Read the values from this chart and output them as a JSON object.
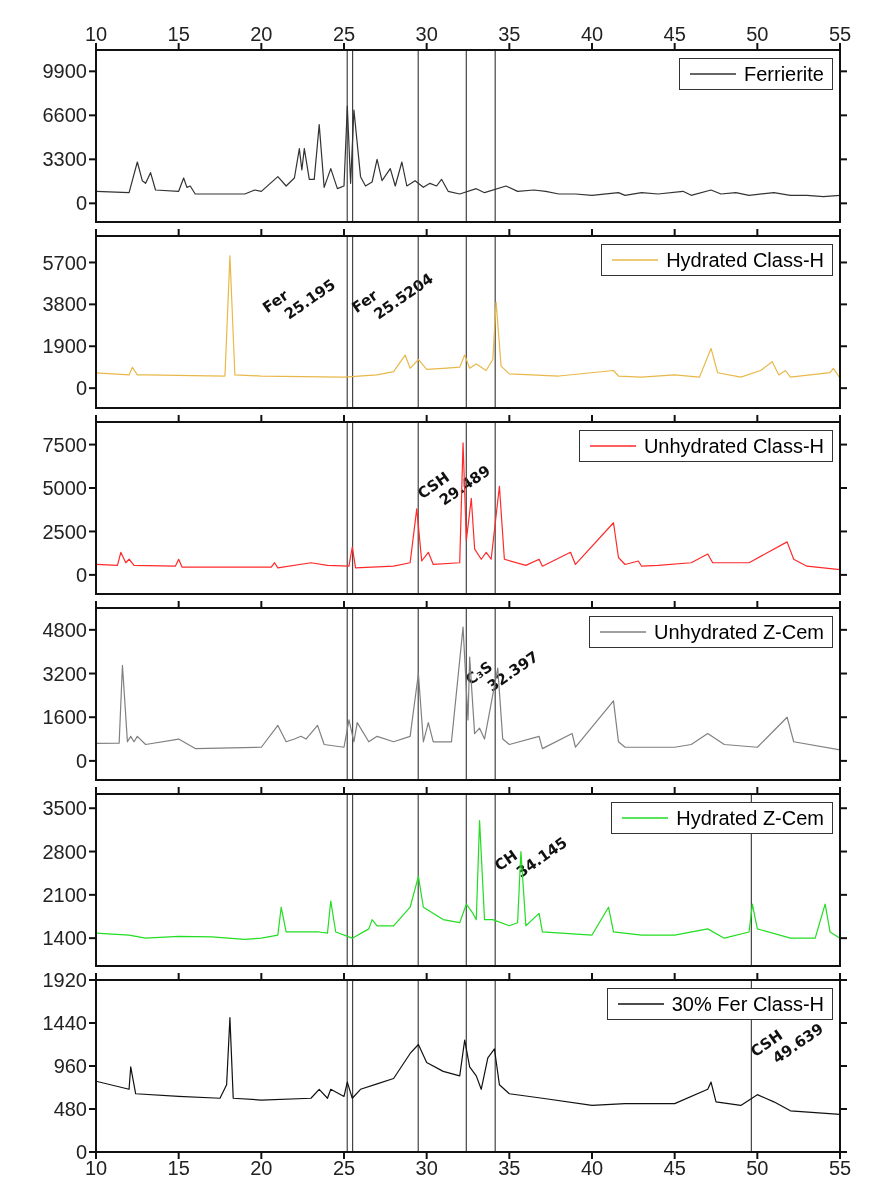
{
  "chart_data": [
    {
      "type": "line",
      "tick_labels": "y",
      "xlim": [
        10,
        55
      ],
      "xticks": [
        10,
        15,
        20,
        25,
        30,
        35,
        40,
        45,
        50,
        55
      ],
      "x2lim": [
        10,
        55
      ],
      "x2ticks": [
        10,
        15,
        20,
        25,
        30,
        35,
        40,
        45,
        50,
        55
      ],
      "ylim": [
        -1400,
        11500
      ],
      "yticks": [
        0,
        3300,
        6600,
        9900
      ],
      "legend": "top right",
      "x": [
        10,
        12,
        12.5,
        12.8,
        13,
        13.3,
        13.6,
        15,
        15.3,
        15.5,
        15.7,
        16,
        17,
        19,
        19.6,
        20,
        21,
        21.5,
        22,
        22.3,
        22.45,
        22.6,
        22.9,
        23.2,
        23.5,
        23.8,
        24.2,
        24.6,
        25,
        25.2,
        25.4,
        25.6,
        26,
        26.3,
        26.7,
        27,
        27.3,
        27.8,
        28.1,
        28.5,
        28.8,
        29.3,
        29.8,
        30.2,
        30.6,
        30.9,
        31.3,
        32,
        33,
        33.5,
        34.8,
        35.5,
        36.5,
        37.2,
        38,
        39,
        40,
        41.6,
        42,
        43,
        44,
        45.5,
        46,
        47.2,
        47.8,
        48.7,
        49.5,
        51,
        52,
        53,
        54,
        55
      ],
      "series": [
        {
          "name": "Ferrierite",
          "color": "#333333",
          "values": [
            900,
            800,
            3100,
            1700,
            1500,
            2300,
            1000,
            900,
            1900,
            1200,
            1300,
            700,
            700,
            700,
            1000,
            900,
            2000,
            1300,
            1900,
            4100,
            2500,
            4100,
            1800,
            1800,
            5900,
            1200,
            2600,
            1100,
            1300,
            7300,
            1500,
            7000,
            2000,
            1300,
            1600,
            3300,
            1700,
            2600,
            1300,
            3100,
            1300,
            1700,
            1200,
            1500,
            1300,
            1800,
            900,
            700,
            1100,
            800,
            1300,
            900,
            1000,
            900,
            700,
            700,
            600,
            800,
            600,
            800,
            700,
            900,
            600,
            1000,
            700,
            800,
            600,
            800,
            600,
            600,
            500,
            600
          ]
        }
      ],
      "ref_lines": [
        {
          "axis": "x",
          "value": 25.195
        },
        {
          "axis": "x",
          "value": 25.5204
        },
        {
          "axis": "x",
          "value": 29.489
        },
        {
          "axis": "x",
          "value": 32.397
        },
        {
          "axis": "x",
          "value": 34.145
        }
      ]
    },
    {
      "type": "line",
      "tick_labels": "y",
      "xlim": [
        10,
        55
      ],
      "xticks": [
        10,
        15,
        20,
        25,
        30,
        35,
        40,
        45,
        50,
        55
      ],
      "ylim": [
        -900,
        6900
      ],
      "yticks": [
        0,
        1900,
        3800,
        5700
      ],
      "legend": "top right",
      "x": [
        10,
        12,
        12.2,
        12.5,
        13,
        17.8,
        18.1,
        18.4,
        20,
        25,
        27,
        28,
        28.7,
        29,
        29.5,
        30,
        31,
        32,
        32.3,
        32.6,
        33,
        33.6,
        34,
        34.2,
        34.5,
        35,
        38,
        41.3,
        41.6,
        43,
        45,
        46.5,
        47.2,
        47.6,
        49,
        50.2,
        50.9,
        51.3,
        51.7,
        52,
        54.4,
        54.6,
        55
      ],
      "series": [
        {
          "name": "Hydrated Class-H",
          "color": "#e8b84a",
          "values": [
            690,
            600,
            950,
            600,
            600,
            550,
            6000,
            600,
            550,
            500,
            600,
            750,
            1500,
            900,
            1300,
            850,
            900,
            950,
            1500,
            900,
            1100,
            800,
            1300,
            3900,
            1000,
            650,
            550,
            800,
            550,
            500,
            600,
            500,
            1800,
            700,
            500,
            800,
            1200,
            600,
            800,
            500,
            700,
            900,
            450
          ]
        }
      ],
      "ref_lines": [
        {
          "axis": "x",
          "value": 25.195,
          "label": "Fer 25.195"
        },
        {
          "axis": "x",
          "value": 25.5204,
          "label": "Fer 25.5204"
        },
        {
          "axis": "x",
          "value": 29.489
        },
        {
          "axis": "x",
          "value": 32.397
        },
        {
          "axis": "x",
          "value": 34.145
        }
      ]
    },
    {
      "type": "line",
      "tick_labels": "y",
      "xlim": [
        10,
        55
      ],
      "xticks": [
        10,
        15,
        20,
        25,
        30,
        35,
        40,
        45,
        50,
        55
      ],
      "ylim": [
        -1100,
        8800
      ],
      "yticks": [
        0,
        2500,
        5000,
        7500
      ],
      "legend": "top right",
      "x": [
        10,
        11.3,
        11.5,
        11.8,
        12,
        12.3,
        14.8,
        15,
        15.2,
        17.5,
        20.6,
        20.8,
        21,
        23,
        24,
        25.3,
        25.5,
        25.7,
        28,
        29,
        29.4,
        29.7,
        30.1,
        30.4,
        32,
        32.2,
        32.4,
        32.7,
        32.9,
        33.3,
        33.6,
        33.9,
        34.4,
        34.7,
        36,
        36.8,
        37,
        38.7,
        39,
        41.3,
        41.6,
        42,
        42.8,
        43,
        44,
        46,
        47,
        47.3,
        49.5,
        51.8,
        52.2,
        53,
        55
      ],
      "series": [
        {
          "name": "Unhydrated Class-H",
          "color": "#ff2a2a",
          "values": [
            600,
            550,
            1300,
            700,
            900,
            550,
            500,
            900,
            450,
            450,
            450,
            700,
            400,
            700,
            550,
            500,
            1600,
            400,
            500,
            700,
            3800,
            800,
            1300,
            600,
            700,
            7600,
            2000,
            4400,
            1500,
            900,
            1300,
            900,
            5100,
            900,
            550,
            900,
            500,
            1300,
            600,
            3000,
            1000,
            600,
            800,
            500,
            550,
            700,
            1200,
            700,
            700,
            1900,
            900,
            500,
            300
          ]
        }
      ],
      "ref_lines": [
        {
          "axis": "x",
          "value": 25.195
        },
        {
          "axis": "x",
          "value": 25.5204
        },
        {
          "axis": "x",
          "value": 29.489,
          "label": "CSH 29.489"
        },
        {
          "axis": "x",
          "value": 32.397
        },
        {
          "axis": "x",
          "value": 34.145
        }
      ]
    },
    {
      "type": "line",
      "tick_labels": "y",
      "xlim": [
        10,
        55
      ],
      "xticks": [
        10,
        15,
        20,
        25,
        30,
        35,
        40,
        45,
        50,
        55
      ],
      "ylim": [
        -700,
        5600
      ],
      "yticks": [
        0,
        1600,
        3200,
        4800
      ],
      "legend": "top right",
      "x": [
        10,
        11.4,
        11.6,
        11.9,
        12.1,
        12.3,
        12.5,
        13,
        15,
        16,
        20,
        21,
        21.5,
        22,
        22.4,
        22.7,
        23.4,
        23.8,
        25,
        25.3,
        25.6,
        25.8,
        26.5,
        27,
        28,
        29,
        29.5,
        29.8,
        30.1,
        30.4,
        31.5,
        32.2,
        32.5,
        32.6,
        32.9,
        33.2,
        33.5,
        34.3,
        34.6,
        35,
        36.8,
        37,
        38.8,
        39,
        41.3,
        41.6,
        42,
        45,
        46,
        47,
        48,
        50,
        51.8,
        52.2,
        55
      ],
      "series": [
        {
          "name": "Unhydrated Z-Cem",
          "color": "#808080",
          "values": [
            640,
            650,
            3500,
            700,
            900,
            700,
            900,
            600,
            800,
            450,
            500,
            1300,
            700,
            800,
            900,
            800,
            1300,
            600,
            500,
            1500,
            700,
            1400,
            700,
            900,
            700,
            900,
            3200,
            700,
            1400,
            700,
            700,
            4900,
            1500,
            3800,
            1000,
            1200,
            800,
            3400,
            800,
            600,
            900,
            450,
            1000,
            500,
            2200,
            700,
            500,
            500,
            600,
            1000,
            600,
            500,
            1600,
            700,
            400
          ]
        }
      ],
      "ref_lines": [
        {
          "axis": "x",
          "value": 25.195
        },
        {
          "axis": "x",
          "value": 25.5204
        },
        {
          "axis": "x",
          "value": 29.489
        },
        {
          "axis": "x",
          "value": 32.397,
          "label": "C₃S 32.397"
        },
        {
          "axis": "x",
          "value": 34.145
        }
      ]
    },
    {
      "type": "line",
      "tick_labels": "y",
      "xlim": [
        10,
        55
      ],
      "xticks": [
        10,
        15,
        20,
        25,
        30,
        35,
        40,
        45,
        50,
        55
      ],
      "ylim": [
        950,
        3730
      ],
      "yticks": [
        1400,
        2100,
        2800,
        3500
      ],
      "legend": "top right",
      "x": [
        10,
        12,
        13,
        15,
        17,
        19,
        20,
        21,
        21.2,
        21.5,
        23.5,
        24,
        24.2,
        24.5,
        25.5,
        26.5,
        26.7,
        27,
        28,
        29,
        29.5,
        29.8,
        31,
        32,
        32.4,
        32.8,
        33,
        33.2,
        33.5,
        34,
        35,
        35.5,
        35.7,
        36,
        36.8,
        37,
        40,
        41,
        41.3,
        43,
        45,
        47,
        48,
        49.5,
        49.7,
        50,
        52,
        53.5,
        54.1,
        54.4,
        55
      ],
      "series": [
        {
          "name": "Hydrated Z-Cem",
          "color": "#22dd22",
          "values": [
            1480,
            1450,
            1400,
            1430,
            1420,
            1380,
            1400,
            1450,
            1900,
            1500,
            1500,
            1480,
            2000,
            1500,
            1400,
            1550,
            1700,
            1600,
            1600,
            1900,
            2400,
            1900,
            1700,
            1650,
            1950,
            1800,
            1700,
            3300,
            1700,
            1700,
            1600,
            1650,
            2800,
            1600,
            1800,
            1500,
            1450,
            1900,
            1500,
            1450,
            1450,
            1550,
            1400,
            1500,
            1950,
            1550,
            1400,
            1400,
            1950,
            1500,
            1400
          ]
        }
      ],
      "ref_lines": [
        {
          "axis": "x",
          "value": 25.195
        },
        {
          "axis": "x",
          "value": 25.5204
        },
        {
          "axis": "x",
          "value": 29.489
        },
        {
          "axis": "x",
          "value": 32.397
        },
        {
          "axis": "x",
          "value": 34.145,
          "label": "CH 34.145"
        },
        {
          "axis": "x",
          "value": 49.639
        }
      ]
    },
    {
      "type": "line",
      "xlim": [
        10,
        55
      ],
      "xticks": [
        10,
        15,
        20,
        25,
        30,
        35,
        40,
        45,
        50,
        55
      ],
      "ylim": [
        0,
        1920
      ],
      "yticks": [
        0,
        480,
        960,
        1440,
        1920
      ],
      "legend": "top right",
      "x": [
        10,
        12,
        12.1,
        12.4,
        15,
        17.5,
        17.9,
        18.1,
        18.3,
        20,
        23,
        23.5,
        24,
        24.2,
        25,
        25.2,
        25.5,
        26,
        27,
        28,
        29,
        29.5,
        30,
        31,
        32,
        32.3,
        32.6,
        33,
        33.3,
        33.7,
        34.1,
        34.4,
        35,
        37,
        40,
        42,
        45,
        47,
        47.2,
        47.5,
        49,
        50,
        50.5,
        51,
        52,
        55
      ],
      "series": [
        {
          "name": "30% Fer Class-H",
          "color": "#111111",
          "values": [
            790,
            700,
            950,
            650,
            620,
            600,
            750,
            1500,
            600,
            580,
            600,
            700,
            600,
            700,
            620,
            780,
            600,
            700,
            760,
            820,
            1100,
            1200,
            1000,
            900,
            850,
            1250,
            950,
            850,
            700,
            1050,
            1150,
            750,
            650,
            600,
            520,
            540,
            540,
            700,
            780,
            560,
            520,
            640,
            600,
            560,
            460,
            420
          ]
        }
      ],
      "ref_lines": [
        {
          "axis": "x",
          "value": 25.195
        },
        {
          "axis": "x",
          "value": 25.5204
        },
        {
          "axis": "x",
          "value": 29.489
        },
        {
          "axis": "x",
          "value": 32.397
        },
        {
          "axis": "x",
          "value": 34.145
        },
        {
          "axis": "x",
          "value": 49.639,
          "label": "CSH 49.639"
        }
      ]
    }
  ]
}
